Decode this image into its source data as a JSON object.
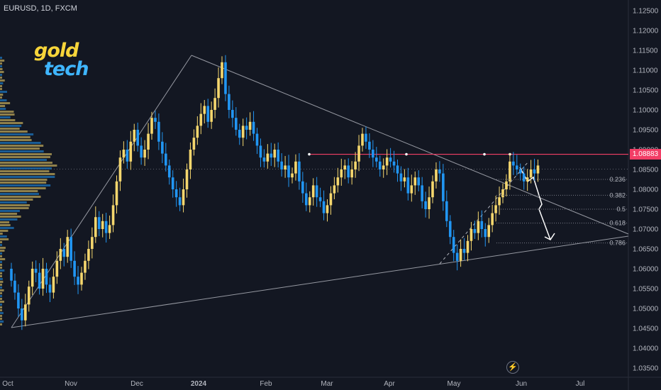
{
  "symbol_label": "EURUSD, 1D, FXCM",
  "logo": {
    "gold": "gold",
    "tech": "tech"
  },
  "colors": {
    "up": "#f5d76e",
    "down": "#2196f3",
    "background": "#131722",
    "resistance": "#f23e66",
    "axis_text": "#b2b5be"
  },
  "current_price": "1.08883",
  "chart_data": {
    "type": "candlestick",
    "y_ticks": [
      "1.12500",
      "1.12000",
      "1.11500",
      "1.11000",
      "1.10500",
      "1.10000",
      "1.09500",
      "1.09000",
      "1.08500",
      "1.08000",
      "1.07500",
      "1.07000",
      "1.06500",
      "1.06000",
      "1.05500",
      "1.05000",
      "1.04500",
      "1.04000",
      "1.03500"
    ],
    "x_ticks": [
      "Oct",
      "Nov",
      "Dec",
      "2024",
      "Feb",
      "Mar",
      "Apr",
      "May",
      "Jun",
      "Jul"
    ],
    "ylim": [
      1.0335,
      1.1265
    ],
    "resistance_level": 1.08883,
    "fib_levels": [
      {
        "label": "0.236",
        "value": 1.0825
      },
      {
        "label": "0.382",
        "value": 1.0785
      },
      {
        "label": "0.5",
        "value": 1.075
      },
      {
        "label": "0.618",
        "value": 1.0715
      },
      {
        "label": "0.786",
        "value": 1.0665
      }
    ],
    "close_series": [
      1.057,
      1.054,
      1.05,
      1.047,
      1.051,
      1.0555,
      1.06,
      1.059,
      1.055,
      1.06,
      1.056,
      1.054,
      1.058,
      1.062,
      1.065,
      1.063,
      1.068,
      1.062,
      1.058,
      1.056,
      1.059,
      1.062,
      1.065,
      1.068,
      1.073,
      1.07,
      1.072,
      1.069,
      1.071,
      1.076,
      1.082,
      1.088,
      1.09,
      1.087,
      1.092,
      1.095,
      1.091,
      1.088,
      1.09,
      1.094,
      1.098,
      1.097,
      1.092,
      1.089,
      1.086,
      1.083,
      1.08,
      1.078,
      1.076,
      1.08,
      1.085,
      1.09,
      1.093,
      1.096,
      1.099,
      1.101,
      1.097,
      1.1,
      1.103,
      1.108,
      1.112,
      1.104,
      1.1,
      1.098,
      1.095,
      1.093,
      1.096,
      1.095,
      1.097,
      1.094,
      1.091,
      1.088,
      1.087,
      1.089,
      1.088,
      1.09,
      1.087,
      1.085,
      1.086,
      1.083,
      1.084,
      1.087,
      1.082,
      1.079,
      1.076,
      1.078,
      1.081,
      1.078,
      1.077,
      1.074,
      1.076,
      1.079,
      1.081,
      1.083,
      1.085,
      1.086,
      1.083,
      1.085,
      1.087,
      1.091,
      1.094,
      1.092,
      1.09,
      1.088,
      1.087,
      1.085,
      1.086,
      1.088,
      1.087,
      1.086,
      1.084,
      1.082,
      1.083,
      1.079,
      1.081,
      1.083,
      1.081,
      1.077,
      1.075,
      1.078,
      1.082,
      1.085,
      1.084,
      1.077,
      1.072,
      1.068,
      1.064,
      1.062,
      1.065,
      1.064,
      1.067,
      1.07,
      1.069,
      1.072,
      1.07,
      1.068,
      1.071,
      1.074,
      1.076,
      1.078,
      1.08,
      1.082,
      1.087,
      1.086,
      1.085,
      1.084,
      1.082,
      1.083,
      1.085,
      1.084,
      1.086
    ]
  },
  "axis_label_texts": {
    "current": "1.08883"
  }
}
